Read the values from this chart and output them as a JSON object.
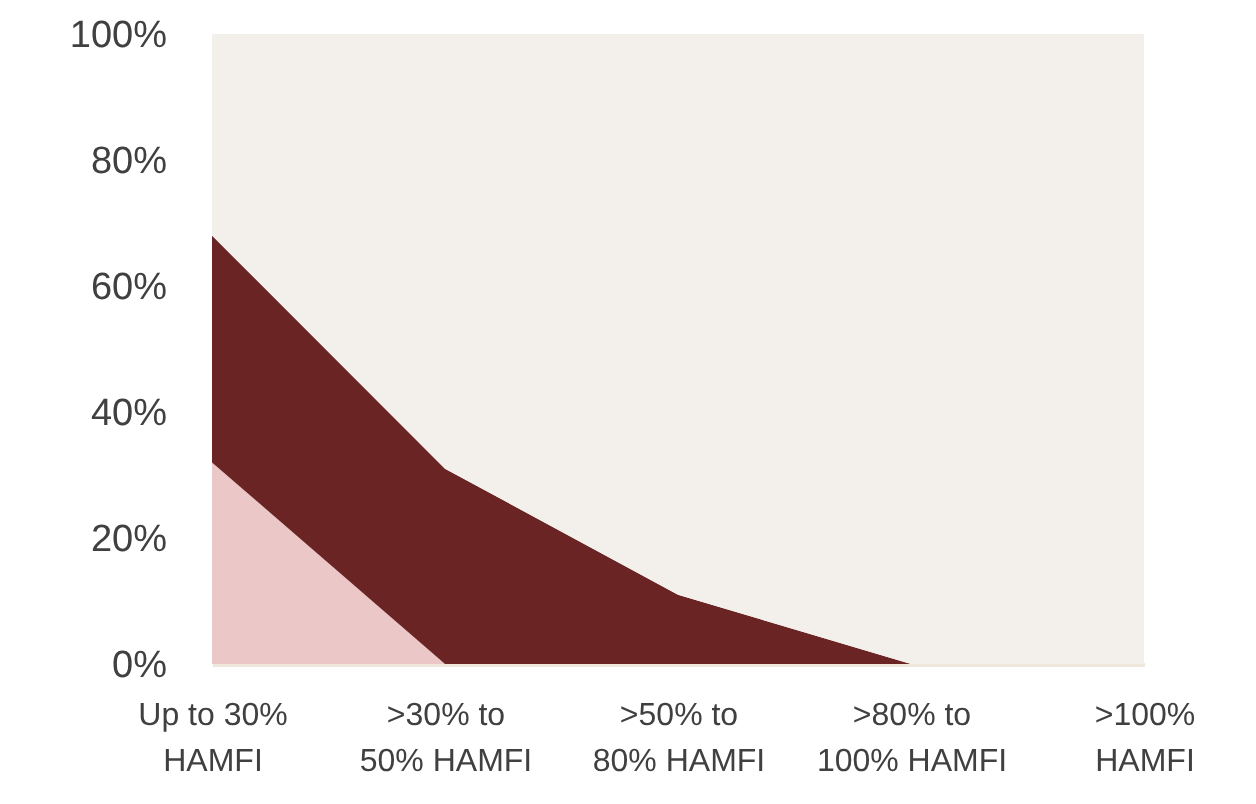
{
  "chart_data": {
    "type": "area",
    "categories": [
      "Up to 30% HAMFI",
      ">30% to 50% HAMFI",
      ">50% to 80% HAMFI",
      ">80% to 100% HAMFI",
      ">100% HAMFI"
    ],
    "series": [
      {
        "color": "#ebc7c7",
        "values": [
          32,
          0,
          0,
          0,
          0
        ]
      },
      {
        "color": "#6b2424",
        "values": [
          36,
          31,
          11,
          0,
          0
        ]
      },
      {
        "color": "#f3f0eb",
        "values": [
          32,
          69,
          89,
          100,
          100
        ]
      }
    ],
    "stacked": true,
    "ylim": [
      0,
      100
    ],
    "yticks": [
      {
        "value": 0,
        "label": "0%"
      },
      {
        "value": 20,
        "label": "20%"
      },
      {
        "value": 40,
        "label": "40%"
      },
      {
        "value": 60,
        "label": "60%"
      },
      {
        "value": 80,
        "label": "80%"
      },
      {
        "value": 100,
        "label": "100%"
      }
    ]
  }
}
